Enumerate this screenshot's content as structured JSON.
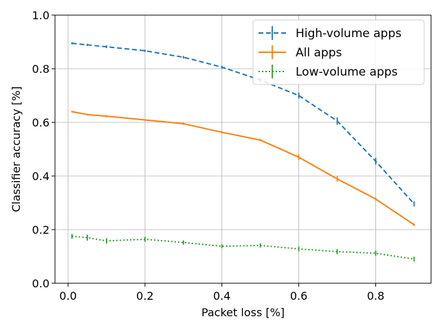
{
  "chart_data": {
    "type": "line",
    "xlabel": "Packet loss [%]",
    "ylabel": "Classifier accuracy [%]",
    "xlim": [
      -0.034,
      0.944
    ],
    "ylim": [
      0.0,
      1.0
    ],
    "xticks": [
      0.0,
      0.2,
      0.4,
      0.6,
      0.8
    ],
    "xtick_labels": [
      "0.0",
      "0.2",
      "0.4",
      "0.6",
      "0.8"
    ],
    "yticks": [
      0.0,
      0.2,
      0.4,
      0.6,
      0.8,
      1.0
    ],
    "ytick_labels": [
      "0.0",
      "0.2",
      "0.4",
      "0.6",
      "0.8",
      "1.0"
    ],
    "grid": true,
    "legend_position": "top-right",
    "x": [
      0.01,
      0.05,
      0.1,
      0.2,
      0.3,
      0.4,
      0.5,
      0.6,
      0.7,
      0.8,
      0.9
    ],
    "series": [
      {
        "name": "High-volume apps",
        "color": "#1f77b4",
        "style": "dashed",
        "values": [
          0.895,
          0.889,
          0.882,
          0.867,
          0.843,
          0.806,
          0.758,
          0.7,
          0.605,
          0.455,
          0.296
        ],
        "errors": [
          0.004,
          0.004,
          0.005,
          0.004,
          0.005,
          0.005,
          0.009,
          0.011,
          0.014,
          0.013,
          0.01
        ]
      },
      {
        "name": "All apps",
        "color": "#ff7f0e",
        "style": "solid",
        "values": [
          0.64,
          0.629,
          0.623,
          0.609,
          0.595,
          0.563,
          0.534,
          0.47,
          0.389,
          0.314,
          0.218
        ],
        "errors": [
          0.003,
          0.003,
          0.004,
          0.003,
          0.004,
          0.004,
          0.004,
          0.01,
          0.01,
          0.005,
          0.005
        ]
      },
      {
        "name": "Low-volume apps",
        "color": "#2ca02c",
        "style": "dotted",
        "values": [
          0.175,
          0.17,
          0.158,
          0.164,
          0.152,
          0.138,
          0.141,
          0.128,
          0.118,
          0.112,
          0.09
        ],
        "errors": [
          0.009,
          0.011,
          0.01,
          0.009,
          0.008,
          0.007,
          0.008,
          0.009,
          0.01,
          0.01,
          0.009
        ]
      }
    ]
  }
}
